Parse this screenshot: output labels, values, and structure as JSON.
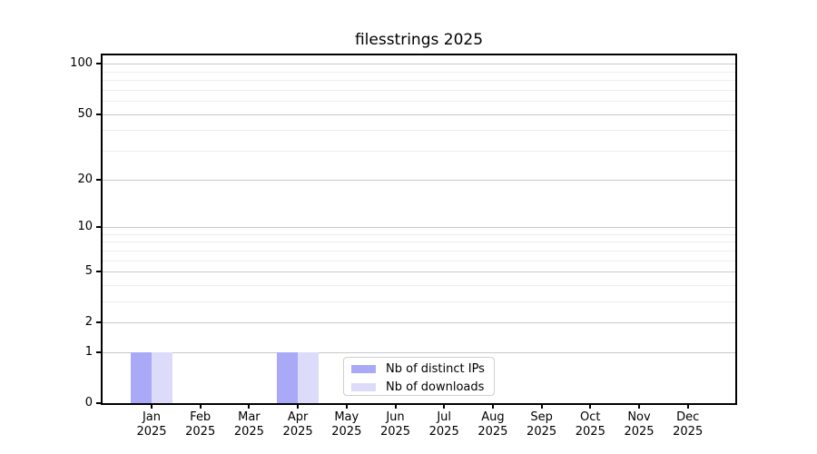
{
  "chart_data": {
    "type": "bar",
    "title": "filesstrings 2025",
    "categories": [
      "Jan",
      "Feb",
      "Mar",
      "Apr",
      "May",
      "Jun",
      "Jul",
      "Aug",
      "Sep",
      "Oct",
      "Nov",
      "Dec"
    ],
    "x_sublabel": "2025",
    "series": [
      {
        "name": "Nb of distinct IPs",
        "color": "#a9a9f7",
        "values": [
          1,
          0,
          0,
          1,
          0,
          0,
          0,
          0,
          0,
          0,
          0,
          0
        ]
      },
      {
        "name": "Nb of downloads",
        "color": "#dcdcfa",
        "values": [
          1,
          0,
          0,
          1,
          0,
          0,
          0,
          0,
          0,
          0,
          0,
          0
        ]
      }
    ],
    "xlabel": "",
    "ylabel": "",
    "y_axis": {
      "scale": "log1p",
      "ticks": [
        0,
        1,
        2,
        5,
        10,
        20,
        50,
        100
      ],
      "minor_ticks": [
        3,
        4,
        6,
        7,
        8,
        9,
        30,
        40,
        60,
        70,
        80,
        90
      ],
      "range": [
        0,
        112.5
      ]
    },
    "grid": true,
    "grid_major_color": "#c9c9c9",
    "grid_minor_color": "#ededed",
    "spine_color": "#000000",
    "legend": {
      "position": "bottom-center",
      "entries": [
        "Nb of distinct IPs",
        "Nb of downloads"
      ]
    }
  }
}
